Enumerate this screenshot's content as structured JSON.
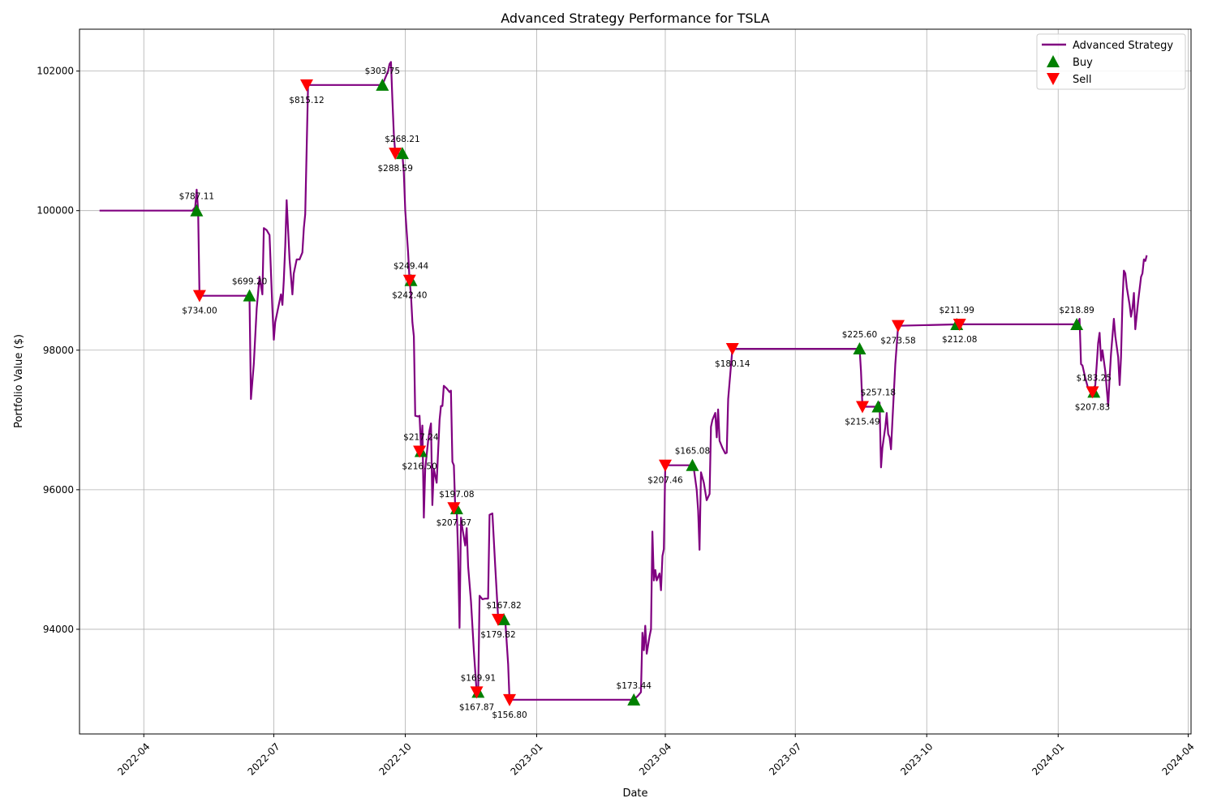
{
  "chart_data": {
    "type": "line",
    "title": "Advanced Strategy Performance for TSLA",
    "xlabel": "Date",
    "ylabel": "Portfolio Value ($)",
    "xlim": [
      "2022-02-15",
      "2024-04-03"
    ],
    "ylim": [
      92500,
      102600
    ],
    "xticks": [
      {
        "date": "2022-04-01",
        "label": "2022-04"
      },
      {
        "date": "2022-07-01",
        "label": "2022-07"
      },
      {
        "date": "2022-10-01",
        "label": "2022-10"
      },
      {
        "date": "2023-01-01",
        "label": "2023-01"
      },
      {
        "date": "2023-04-01",
        "label": "2023-04"
      },
      {
        "date": "2023-07-01",
        "label": "2023-07"
      },
      {
        "date": "2023-10-01",
        "label": "2023-10"
      },
      {
        "date": "2024-01-01",
        "label": "2024-01"
      },
      {
        "date": "2024-04-01",
        "label": "2024-04"
      }
    ],
    "yticks": [
      94000,
      96000,
      98000,
      100000,
      102000
    ],
    "grid": true,
    "legend_position": "upper-right",
    "series": [
      {
        "name": "Advanced Strategy",
        "color": "#800080",
        "points": [
          [
            "2022-03-01",
            100000
          ],
          [
            "2022-05-05",
            100000
          ],
          [
            "2022-05-07",
            100050
          ],
          [
            "2022-05-08",
            100300
          ],
          [
            "2022-05-09",
            100000
          ],
          [
            "2022-05-10",
            98780
          ],
          [
            "2022-06-13",
            98780
          ],
          [
            "2022-06-14",
            98700
          ],
          [
            "2022-06-15",
            97300
          ],
          [
            "2022-06-17",
            97800
          ],
          [
            "2022-06-19",
            98600
          ],
          [
            "2022-06-21",
            99050
          ],
          [
            "2022-06-23",
            98800
          ],
          [
            "2022-06-24",
            99750
          ],
          [
            "2022-06-26",
            99720
          ],
          [
            "2022-06-28",
            99650
          ],
          [
            "2022-06-30",
            98600
          ],
          [
            "2022-07-01",
            98150
          ],
          [
            "2022-07-02",
            98400
          ],
          [
            "2022-07-05",
            98700
          ],
          [
            "2022-07-06",
            98800
          ],
          [
            "2022-07-07",
            98650
          ],
          [
            "2022-07-08",
            99000
          ],
          [
            "2022-07-09",
            99500
          ],
          [
            "2022-07-10",
            100150
          ],
          [
            "2022-07-12",
            99300
          ],
          [
            "2022-07-14",
            98800
          ],
          [
            "2022-07-15",
            99100
          ],
          [
            "2022-07-17",
            99300
          ],
          [
            "2022-07-19",
            99300
          ],
          [
            "2022-07-21",
            99400
          ],
          [
            "2022-07-22",
            99750
          ],
          [
            "2022-07-23",
            99950
          ],
          [
            "2022-07-25",
            101800
          ],
          [
            "2022-09-15",
            101800
          ],
          [
            "2022-09-17",
            101900
          ],
          [
            "2022-09-19",
            102000
          ],
          [
            "2022-09-20",
            102100
          ],
          [
            "2022-09-21",
            102130
          ],
          [
            "2022-09-22",
            101600
          ],
          [
            "2022-09-23",
            101100
          ],
          [
            "2022-09-24",
            100820
          ],
          [
            "2022-09-26",
            100820
          ],
          [
            "2022-09-29",
            100800
          ],
          [
            "2022-09-30",
            100550
          ],
          [
            "2022-10-01",
            100000
          ],
          [
            "2022-10-03",
            99400
          ],
          [
            "2022-10-04",
            99000
          ],
          [
            "2022-10-05",
            98800
          ],
          [
            "2022-10-06",
            98400
          ],
          [
            "2022-10-07",
            98200
          ],
          [
            "2022-10-08",
            97060
          ],
          [
            "2022-10-10",
            97050
          ],
          [
            "2022-10-11",
            97060
          ],
          [
            "2022-10-12",
            96600
          ],
          [
            "2022-10-13",
            96920
          ],
          [
            "2022-10-14",
            95600
          ],
          [
            "2022-10-15",
            96300
          ],
          [
            "2022-10-17",
            96700
          ],
          [
            "2022-10-18",
            96850
          ],
          [
            "2022-10-19",
            96950
          ],
          [
            "2022-10-20",
            95780
          ],
          [
            "2022-10-21",
            96300
          ],
          [
            "2022-10-23",
            96100
          ],
          [
            "2022-10-25",
            97000
          ],
          [
            "2022-10-26",
            97200
          ],
          [
            "2022-10-27",
            97200
          ],
          [
            "2022-10-28",
            97490
          ],
          [
            "2022-10-30",
            97450
          ],
          [
            "2022-11-01",
            97400
          ],
          [
            "2022-11-02",
            97420
          ],
          [
            "2022-11-03",
            96400
          ],
          [
            "2022-11-04",
            96350
          ],
          [
            "2022-11-05",
            95740
          ],
          [
            "2022-11-06",
            95730
          ],
          [
            "2022-11-07",
            95100
          ],
          [
            "2022-11-08",
            94020
          ],
          [
            "2022-11-09",
            95600
          ],
          [
            "2022-11-10",
            95450
          ],
          [
            "2022-11-12",
            95200
          ],
          [
            "2022-11-13",
            95450
          ],
          [
            "2022-11-14",
            94900
          ],
          [
            "2022-11-16",
            94400
          ],
          [
            "2022-11-18",
            93700
          ],
          [
            "2022-11-20",
            93100
          ],
          [
            "2022-11-21",
            93050
          ],
          [
            "2022-11-22",
            94480
          ],
          [
            "2022-11-24",
            94430
          ],
          [
            "2022-11-26",
            94440
          ],
          [
            "2022-11-28",
            94440
          ],
          [
            "2022-11-29",
            95640
          ],
          [
            "2022-12-01",
            95660
          ],
          [
            "2022-12-03",
            94900
          ],
          [
            "2022-12-05",
            94160
          ],
          [
            "2022-12-09",
            94160
          ],
          [
            "2022-12-10",
            94120
          ],
          [
            "2022-12-12",
            93500
          ],
          [
            "2022-12-13",
            92990
          ],
          [
            "2023-03-10",
            92990
          ],
          [
            "2023-03-13",
            93050
          ],
          [
            "2023-03-15",
            93100
          ],
          [
            "2023-03-16",
            93950
          ],
          [
            "2023-03-17",
            93700
          ],
          [
            "2023-03-18",
            94050
          ],
          [
            "2023-03-19",
            93650
          ],
          [
            "2023-03-21",
            93900
          ],
          [
            "2023-03-22",
            94000
          ],
          [
            "2023-03-23",
            95400
          ],
          [
            "2023-03-24",
            94700
          ],
          [
            "2023-03-25",
            94850
          ],
          [
            "2023-03-26",
            94700
          ],
          [
            "2023-03-28",
            94800
          ],
          [
            "2023-03-29",
            94560
          ],
          [
            "2023-03-30",
            95050
          ],
          [
            "2023-03-31",
            95150
          ],
          [
            "2023-04-01",
            96350
          ],
          [
            "2023-04-20",
            96350
          ],
          [
            "2023-04-21",
            96300
          ],
          [
            "2023-04-23",
            96000
          ],
          [
            "2023-04-24",
            95700
          ],
          [
            "2023-04-25",
            95140
          ],
          [
            "2023-04-26",
            96250
          ],
          [
            "2023-04-28",
            96100
          ],
          [
            "2023-04-30",
            95850
          ],
          [
            "2023-05-02",
            95940
          ],
          [
            "2023-05-03",
            96900
          ],
          [
            "2023-05-04",
            97000
          ],
          [
            "2023-05-06",
            97100
          ],
          [
            "2023-05-07",
            96750
          ],
          [
            "2023-05-08",
            97150
          ],
          [
            "2023-05-09",
            96700
          ],
          [
            "2023-05-11",
            96600
          ],
          [
            "2023-05-13",
            96520
          ],
          [
            "2023-05-14",
            96530
          ],
          [
            "2023-05-15",
            97300
          ],
          [
            "2023-05-18",
            98020
          ],
          [
            "2023-08-15",
            98020
          ],
          [
            "2023-08-16",
            97700
          ],
          [
            "2023-08-17",
            97190
          ],
          [
            "2023-08-28",
            97190
          ],
          [
            "2023-08-29",
            97250
          ],
          [
            "2023-08-30",
            96320
          ],
          [
            "2023-08-31",
            96600
          ],
          [
            "2023-09-02",
            96900
          ],
          [
            "2023-09-03",
            97100
          ],
          [
            "2023-09-04",
            96800
          ],
          [
            "2023-09-05",
            96750
          ],
          [
            "2023-09-06",
            96580
          ],
          [
            "2023-09-07",
            97000
          ],
          [
            "2023-09-09",
            97800
          ],
          [
            "2023-09-11",
            98350
          ],
          [
            "2023-10-24",
            98370
          ],
          [
            "2024-01-14",
            98370
          ],
          [
            "2024-01-15",
            98400
          ],
          [
            "2024-01-16",
            98450
          ],
          [
            "2024-01-17",
            97800
          ],
          [
            "2024-01-18",
            97780
          ],
          [
            "2024-01-20",
            97600
          ],
          [
            "2024-01-22",
            97450
          ],
          [
            "2024-01-24",
            97400
          ],
          [
            "2024-01-26",
            97400
          ],
          [
            "2024-01-27",
            97500
          ],
          [
            "2024-01-28",
            97800
          ],
          [
            "2024-01-29",
            98100
          ],
          [
            "2024-01-30",
            98250
          ],
          [
            "2024-01-31",
            97850
          ],
          [
            "2024-02-01",
            98000
          ],
          [
            "2024-02-03",
            97700
          ],
          [
            "2024-02-04",
            97450
          ],
          [
            "2024-02-05",
            97200
          ],
          [
            "2024-02-06",
            97600
          ],
          [
            "2024-02-07",
            97950
          ],
          [
            "2024-02-09",
            98450
          ],
          [
            "2024-02-10",
            98200
          ],
          [
            "2024-02-12",
            97900
          ],
          [
            "2024-02-13",
            97500
          ],
          [
            "2024-02-14",
            97900
          ],
          [
            "2024-02-15",
            98700
          ],
          [
            "2024-02-16",
            99140
          ],
          [
            "2024-02-17",
            99100
          ],
          [
            "2024-02-18",
            98900
          ],
          [
            "2024-02-20",
            98650
          ],
          [
            "2024-02-21",
            98480
          ],
          [
            "2024-02-22",
            98600
          ],
          [
            "2024-02-23",
            98820
          ],
          [
            "2024-02-24",
            98300
          ],
          [
            "2024-02-26",
            98700
          ],
          [
            "2024-02-28",
            99050
          ],
          [
            "2024-02-29",
            99100
          ],
          [
            "2024-03-01",
            99300
          ],
          [
            "2024-03-02",
            99280
          ],
          [
            "2024-03-03",
            99360
          ]
        ]
      }
    ],
    "buy_signals": [
      {
        "date": "2022-05-08",
        "value": 100000,
        "label": "$787.11"
      },
      {
        "date": "2022-06-14",
        "value": 98780,
        "label": "$699.20"
      },
      {
        "date": "2022-09-15",
        "value": 101800,
        "label": "$303.75"
      },
      {
        "date": "2022-09-29",
        "value": 100820,
        "label": "$268.21"
      },
      {
        "date": "2022-10-05",
        "value": 99000,
        "label": "$249.44"
      },
      {
        "date": "2022-10-12",
        "value": 96550,
        "label": "$217.24"
      },
      {
        "date": "2022-11-06",
        "value": 95730,
        "label": "$197.08"
      },
      {
        "date": "2022-11-21",
        "value": 93100,
        "label": "$169.91"
      },
      {
        "date": "2022-12-09",
        "value": 94140,
        "label": "$167.82"
      },
      {
        "date": "2023-03-10",
        "value": 92990,
        "label": "$173.44"
      },
      {
        "date": "2023-04-20",
        "value": 96350,
        "label": "$165.08"
      },
      {
        "date": "2023-08-15",
        "value": 98020,
        "label": "$225.60"
      },
      {
        "date": "2023-08-28",
        "value": 97190,
        "label": "$257.18"
      },
      {
        "date": "2023-10-22",
        "value": 98370,
        "label": "$211.99"
      },
      {
        "date": "2024-01-14",
        "value": 98370,
        "label": "$218.89"
      },
      {
        "date": "2024-01-26",
        "value": 97400,
        "label": "$183.25"
      }
    ],
    "sell_signals": [
      {
        "date": "2022-05-10",
        "value": 98780,
        "label": "$734.00"
      },
      {
        "date": "2022-07-24",
        "value": 101800,
        "label": "$815.12"
      },
      {
        "date": "2022-09-24",
        "value": 100820,
        "label": "$288.59"
      },
      {
        "date": "2022-10-04",
        "value": 99000,
        "label": "$242.40"
      },
      {
        "date": "2022-10-11",
        "value": 96550,
        "label": "$216.50"
      },
      {
        "date": "2022-11-04",
        "value": 95740,
        "label": "$207.67"
      },
      {
        "date": "2022-11-20",
        "value": 93100,
        "label": "$167.87"
      },
      {
        "date": "2022-12-05",
        "value": 94140,
        "label": "$179.82"
      },
      {
        "date": "2022-12-13",
        "value": 92990,
        "label": "$156.80"
      },
      {
        "date": "2023-04-01",
        "value": 96350,
        "label": "$207.46"
      },
      {
        "date": "2023-05-18",
        "value": 98020,
        "label": "$180.14"
      },
      {
        "date": "2023-08-17",
        "value": 97190,
        "label": "$215.49"
      },
      {
        "date": "2023-09-11",
        "value": 98350,
        "label": "$273.58"
      },
      {
        "date": "2023-10-24",
        "value": 98370,
        "label": "$212.08"
      },
      {
        "date": "2024-01-25",
        "value": 97400,
        "label": "$207.83"
      }
    ],
    "legend": {
      "line": "Advanced Strategy",
      "buy": "Buy",
      "sell": "Sell"
    },
    "colors": {
      "line": "#800080",
      "buy": "#008000",
      "sell": "#ff0000",
      "grid": "#b0b0b0"
    }
  }
}
